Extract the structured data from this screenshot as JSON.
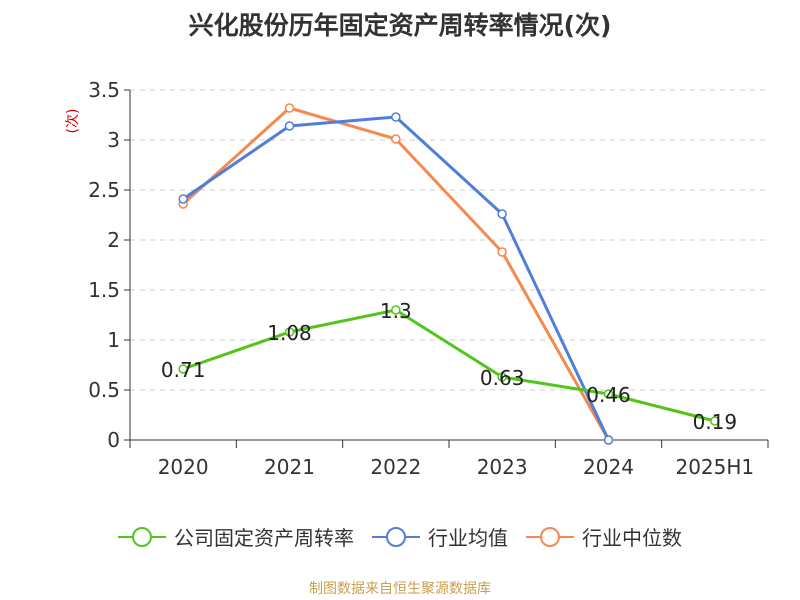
{
  "chart_data": {
    "type": "line",
    "title": "兴化股份历年固定资产周转率情况(次)",
    "ylabel": "(次)",
    "categories": [
      "2020",
      "2021",
      "2022",
      "2023",
      "2024",
      "2025H1"
    ],
    "ylim": [
      0,
      3.5
    ],
    "yticks": [
      0,
      0.5,
      1,
      1.5,
      2,
      2.5,
      3,
      3.5
    ],
    "ytick_labels": [
      "0",
      "0.5",
      "1",
      "1.5",
      "2",
      "2.5",
      "3",
      "3.5"
    ],
    "grid": "horizontal-dashed",
    "legend_position": "bottom",
    "series": [
      {
        "name": "公司固定资产周转率",
        "color": "#52c41a",
        "values": [
          0.71,
          1.08,
          1.3,
          0.63,
          0.46,
          0.19
        ],
        "labels": [
          "0.71",
          "1.08",
          "1.3",
          "0.63",
          "0.46",
          "0.19"
        ]
      },
      {
        "name": "行业均值",
        "color": "#4f7fd8",
        "values": [
          2.41,
          3.14,
          3.23,
          2.26,
          0.0,
          null
        ],
        "labels": null
      },
      {
        "name": "行业中位数",
        "color": "#f5894f",
        "values": [
          2.36,
          3.32,
          3.01,
          1.88,
          0.0,
          null
        ],
        "labels": null
      }
    ]
  },
  "footer": {
    "source": "制图数据来自恒生聚源数据库"
  }
}
